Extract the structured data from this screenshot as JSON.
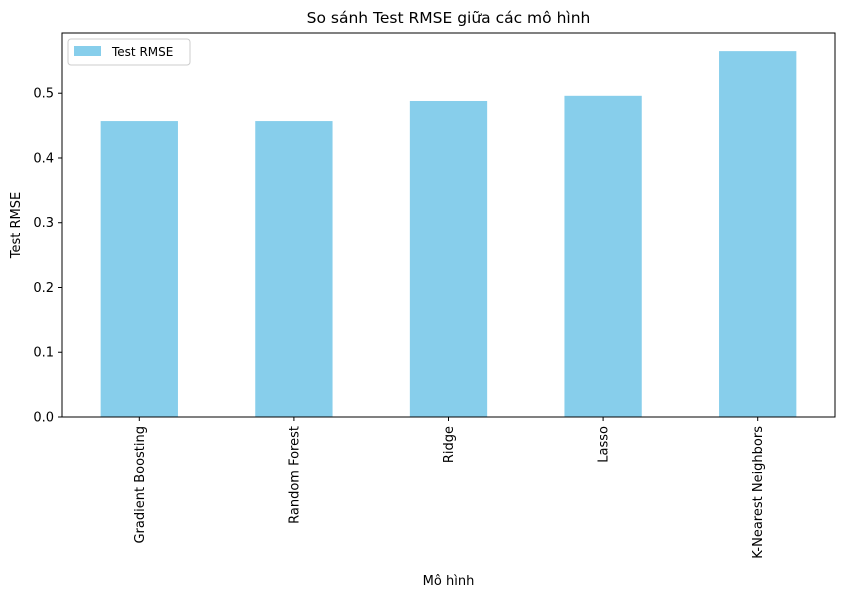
{
  "chart_data": {
    "type": "bar",
    "title": "So sánh Test RMSE giữa các mô hình",
    "xlabel": "Mô hình",
    "ylabel": "Test RMSE",
    "categories": [
      "Gradient Boosting",
      "Random Forest",
      "Ridge",
      "Lasso",
      "K-Nearest Neighbors"
    ],
    "series": [
      {
        "name": "Test RMSE",
        "values": [
          0.457,
          0.457,
          0.488,
          0.496,
          0.565
        ],
        "color": "#87ceeb"
      }
    ],
    "ylim": [
      0,
      0.593
    ],
    "yticks": [
      0.0,
      0.1,
      0.2,
      0.3,
      0.4,
      0.5
    ],
    "ytick_labels": [
      "0.0",
      "0.1",
      "0.2",
      "0.3",
      "0.4",
      "0.5"
    ],
    "grid": false,
    "legend_position": "top-left",
    "xtick_rotation": "vertical"
  }
}
